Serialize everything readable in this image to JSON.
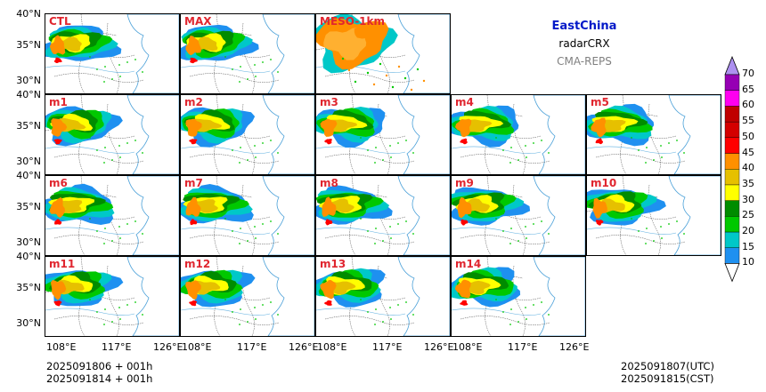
{
  "panels": [
    {
      "label": "CTL",
      "row": 0,
      "col": 0,
      "meso": false
    },
    {
      "label": "MAX",
      "row": 0,
      "col": 1,
      "meso": false
    },
    {
      "label": "MESO-1km",
      "row": 0,
      "col": 2,
      "meso": true
    },
    {
      "label": "m1",
      "row": 1,
      "col": 0,
      "meso": false
    },
    {
      "label": "m2",
      "row": 1,
      "col": 1,
      "meso": false
    },
    {
      "label": "m3",
      "row": 1,
      "col": 2,
      "meso": false
    },
    {
      "label": "m4",
      "row": 1,
      "col": 3,
      "meso": false
    },
    {
      "label": "m5",
      "row": 1,
      "col": 4,
      "meso": false
    },
    {
      "label": "m6",
      "row": 2,
      "col": 0,
      "meso": false
    },
    {
      "label": "m7",
      "row": 2,
      "col": 1,
      "meso": false
    },
    {
      "label": "m8",
      "row": 2,
      "col": 2,
      "meso": false
    },
    {
      "label": "m9",
      "row": 2,
      "col": 3,
      "meso": false
    },
    {
      "label": "m10",
      "row": 2,
      "col": 4,
      "meso": false
    },
    {
      "label": "m11",
      "row": 3,
      "col": 0,
      "meso": false
    },
    {
      "label": "m12",
      "row": 3,
      "col": 1,
      "meso": false
    },
    {
      "label": "m13",
      "row": 3,
      "col": 2,
      "meso": false
    },
    {
      "label": "m14",
      "row": 3,
      "col": 3,
      "meso": false
    }
  ],
  "lat_ticks": [
    "40°N",
    "35°N",
    "30°N"
  ],
  "lon_ticks": [
    "108°E",
    "117°E",
    "126°E"
  ],
  "info": {
    "region": "EastChina",
    "variable": "radarCRX",
    "system": "CMA-REPS"
  },
  "colorbar": {
    "levels": [
      "10",
      "15",
      "20",
      "25",
      "30",
      "35",
      "40",
      "45",
      "50",
      "55",
      "60",
      "65",
      "70"
    ],
    "colors": [
      "#1e90f0",
      "#00c8c8",
      "#00c800",
      "#008c00",
      "#ffff00",
      "#e6c000",
      "#ff9000",
      "#ff0000",
      "#d40000",
      "#c00000",
      "#ff00f0",
      "#9600b4",
      "#ad90f0"
    ]
  },
  "footer": {
    "left_line1": "2025091806  +  001h",
    "left_line2": "2025091814  +  001h",
    "right_line1": "2025091807(UTC)",
    "right_line2": "2025091815(CST)"
  }
}
